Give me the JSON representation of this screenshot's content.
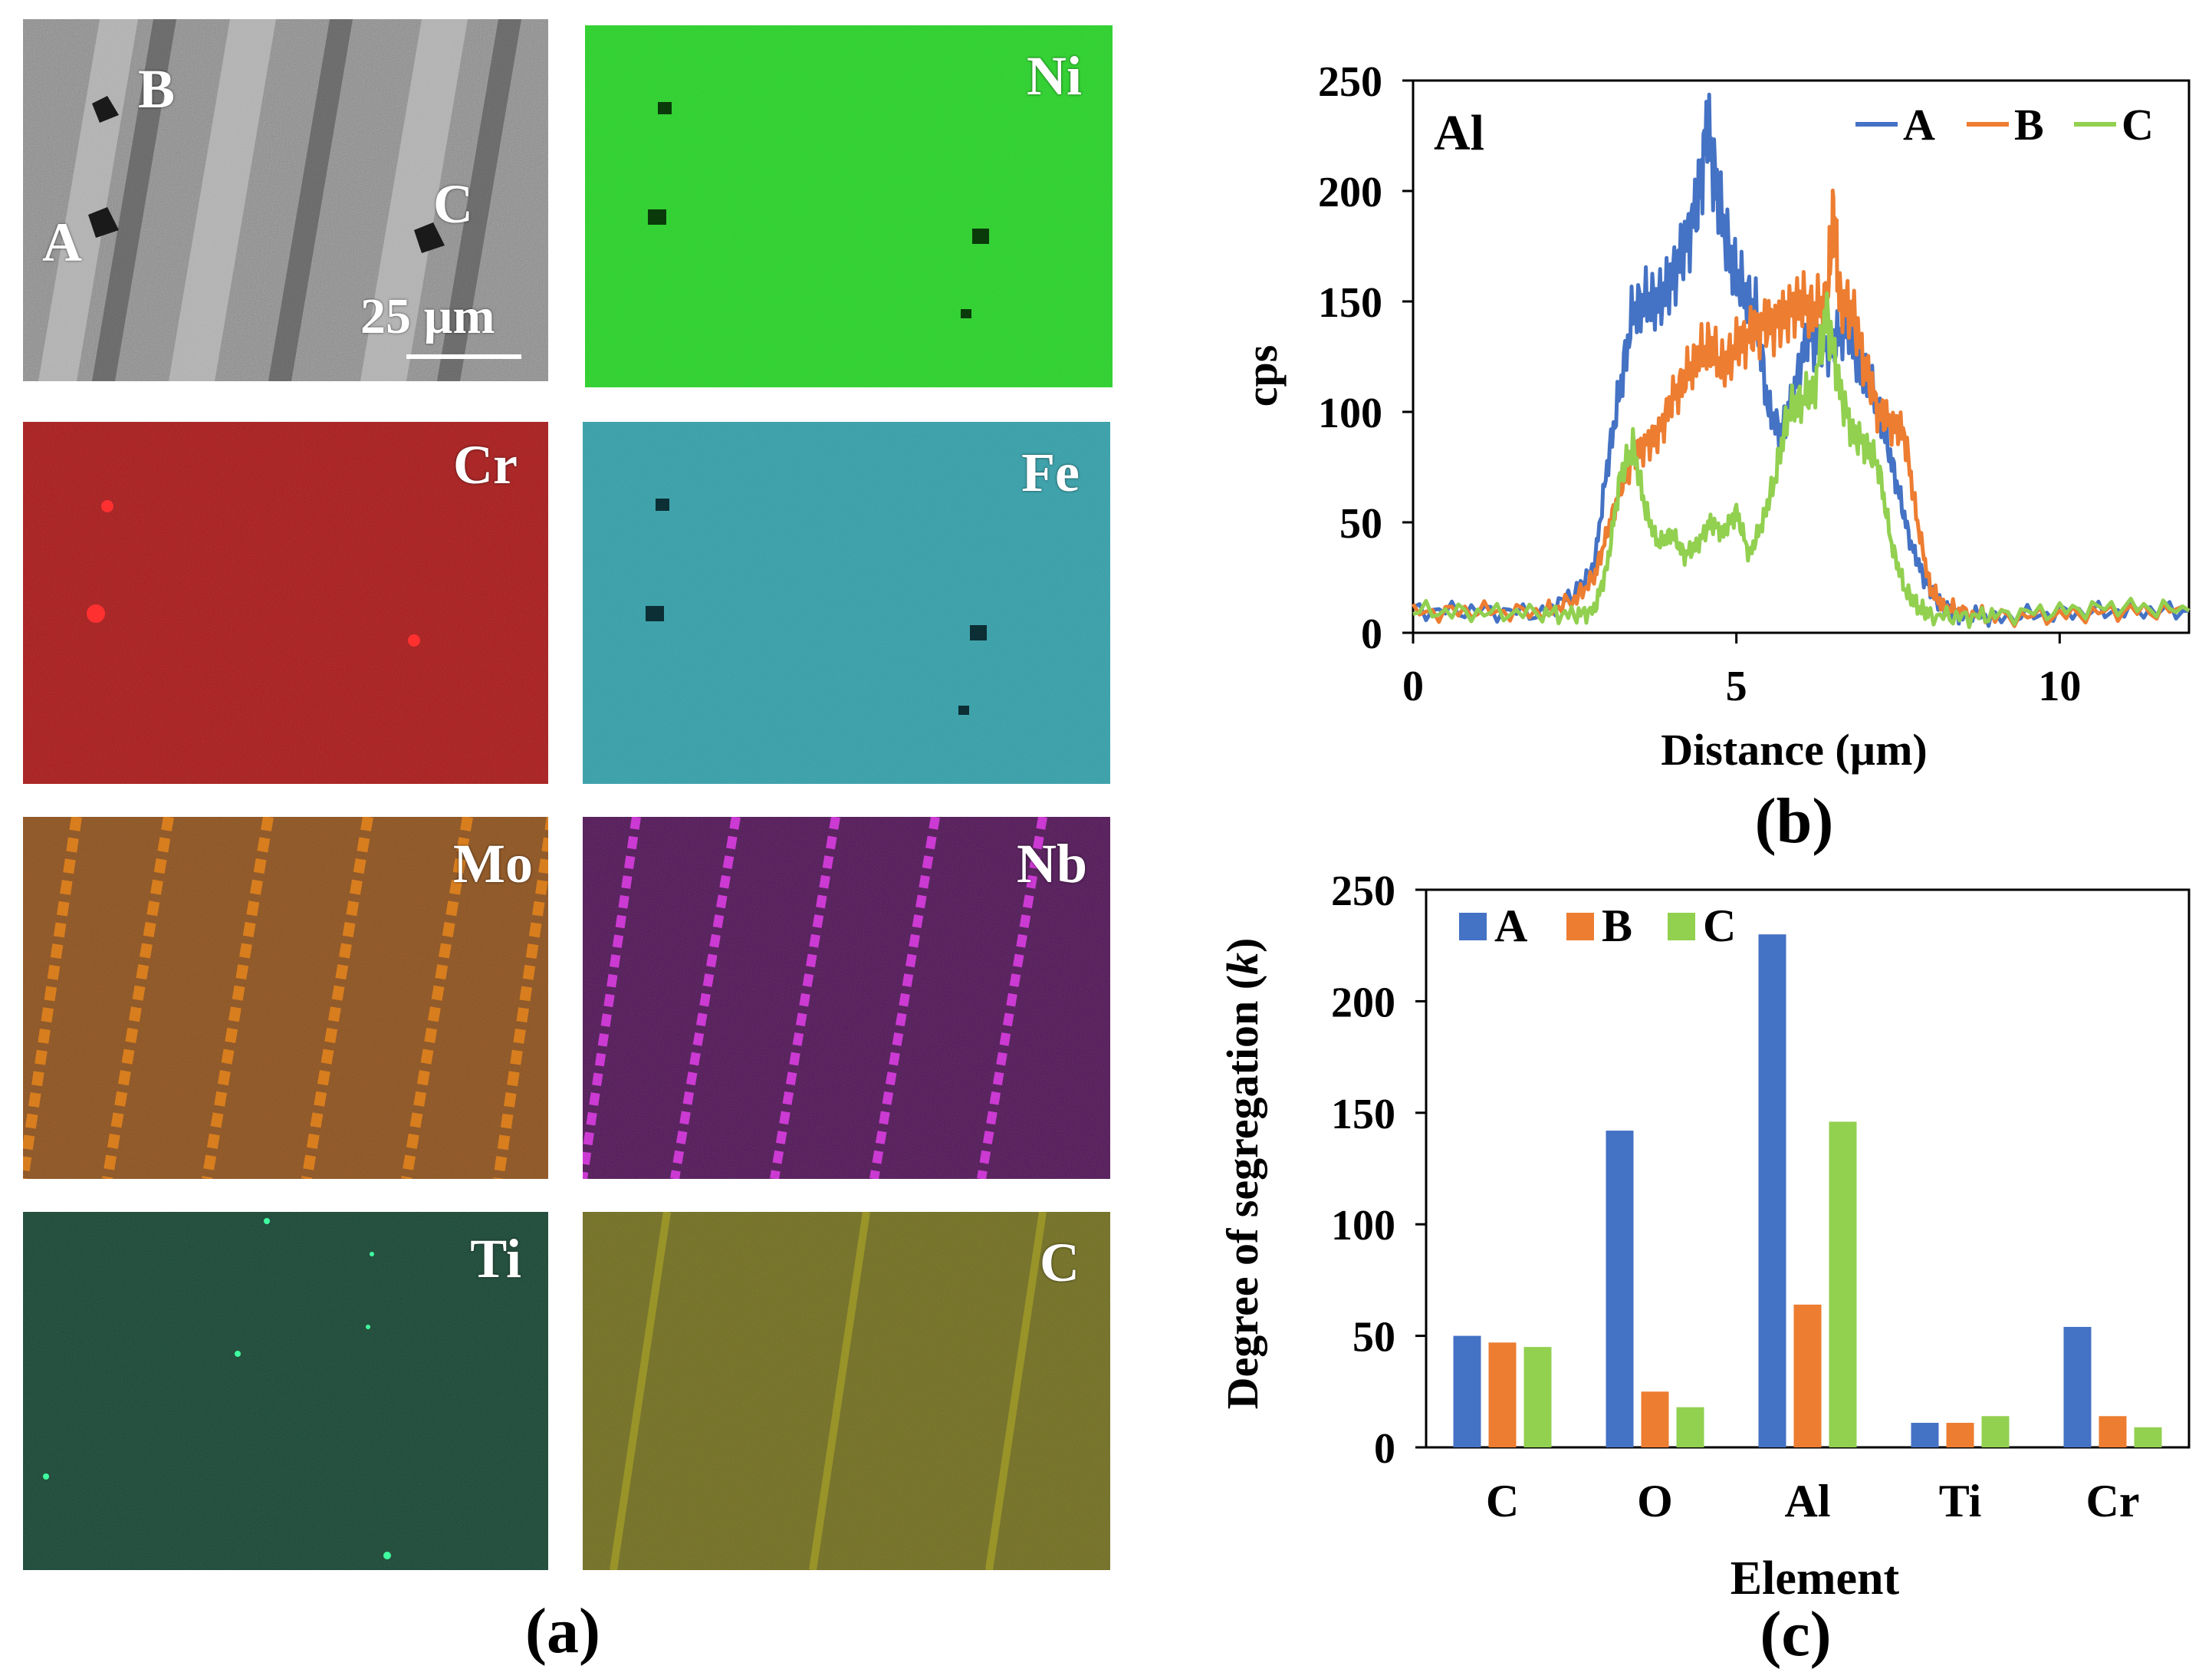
{
  "panel_a": {
    "caption": "(a)",
    "sem": {
      "points": [
        "A",
        "B",
        "C"
      ],
      "scale_bar": "25 µm"
    },
    "maps": [
      {
        "element": "Ni",
        "color": "#22dd22",
        "base": "#18c018"
      },
      {
        "element": "Cr",
        "color": "#c41414",
        "base": "#a00c0c"
      },
      {
        "element": "Fe",
        "color": "#2aa6b0",
        "base": "#1f8a95"
      },
      {
        "element": "Mo",
        "color": "#d87a14",
        "base": "#8a4a12"
      },
      {
        "element": "Nb",
        "color": "#e040e8",
        "base": "#4a0a50"
      },
      {
        "element": "Ti",
        "color": "#1e9a6a",
        "base": "#0b3e2a"
      },
      {
        "element": "C",
        "color": "#d6d020",
        "base": "#6e6a10"
      }
    ]
  },
  "chart_data": [
    {
      "id": "b",
      "type": "line",
      "caption": "(b)",
      "annotation": "Al",
      "xlabel": "Distance (µm)",
      "ylabel": "cps",
      "xlim": [
        0,
        12
      ],
      "ylim": [
        0,
        250
      ],
      "xticks": [
        0,
        5,
        10
      ],
      "yticks": [
        0,
        50,
        100,
        150,
        200,
        250
      ],
      "legend": "top-right",
      "series": [
        {
          "name": "A",
          "color": "#4472c4",
          "x": [
            0,
            1,
            2,
            2.5,
            2.8,
            3,
            3.2,
            3.4,
            3.6,
            3.8,
            4,
            4.2,
            4.4,
            4.55,
            4.7,
            4.9,
            5.1,
            5.3,
            5.5,
            5.7,
            5.9,
            6.1,
            6.3,
            6.5,
            6.7,
            6.9,
            7.1,
            7.3,
            7.5,
            7.7,
            7.9,
            8.1,
            8.3,
            8.5,
            9,
            10,
            11,
            12
          ],
          "y": [
            10,
            10,
            9,
            18,
            30,
            75,
            110,
            145,
            150,
            150,
            160,
            175,
            195,
            230,
            200,
            170,
            155,
            145,
            100,
            90,
            110,
            135,
            130,
            130,
            140,
            120,
            110,
            90,
            65,
            40,
            25,
            15,
            10,
            8,
            7,
            9,
            10,
            10
          ]
        },
        {
          "name": "B",
          "color": "#ed7d31",
          "x": [
            0,
            1,
            2,
            2.5,
            2.8,
            3,
            3.2,
            3.4,
            3.6,
            3.8,
            4,
            4.2,
            4.4,
            4.6,
            4.8,
            5,
            5.2,
            5.4,
            5.6,
            5.8,
            6,
            6.2,
            6.4,
            6.5,
            6.6,
            6.8,
            7,
            7.2,
            7.4,
            7.6,
            7.8,
            8,
            8.2,
            8.5,
            9,
            10,
            11,
            12
          ],
          "y": [
            9,
            10,
            9,
            15,
            25,
            45,
            65,
            80,
            85,
            90,
            105,
            115,
            125,
            130,
            120,
            130,
            135,
            140,
            140,
            145,
            150,
            145,
            150,
            190,
            150,
            145,
            120,
            100,
            95,
            90,
            50,
            20,
            12,
            9,
            7,
            8,
            10,
            10
          ]
        },
        {
          "name": "C",
          "color": "#92d050",
          "x": [
            0,
            1,
            2,
            2.5,
            2.8,
            3,
            3.2,
            3.4,
            3.6,
            3.8,
            4,
            4.2,
            4.4,
            4.6,
            4.8,
            5,
            5.2,
            5.4,
            5.6,
            5.8,
            6,
            6.2,
            6.4,
            6.6,
            6.8,
            7,
            7.2,
            7.4,
            7.6,
            7.8,
            8,
            8.5,
            9,
            10,
            11,
            12
          ],
          "y": [
            10,
            9,
            9,
            8,
            10,
            30,
            70,
            85,
            55,
            40,
            45,
            35,
            40,
            50,
            45,
            55,
            35,
            50,
            70,
            100,
            105,
            110,
            145,
            110,
            90,
            85,
            75,
            40,
            20,
            12,
            8,
            7,
            8,
            10,
            12,
            10
          ]
        }
      ]
    },
    {
      "id": "c",
      "type": "bar",
      "caption": "(c)",
      "xlabel": "Element",
      "ylabel": "Degree of segregation (",
      "ylabel_italic": "k",
      "ylabel_end": ")",
      "ylim": [
        0,
        250
      ],
      "yticks": [
        0,
        50,
        100,
        150,
        200,
        250
      ],
      "legend": "top-left",
      "categories": [
        "C",
        "O",
        "Al",
        "Ti",
        "Cr"
      ],
      "series": [
        {
          "name": "A",
          "color": "#4472c4",
          "values": [
            50,
            142,
            230,
            11,
            54
          ]
        },
        {
          "name": "B",
          "color": "#ed7d31",
          "values": [
            47,
            25,
            64,
            11,
            14
          ]
        },
        {
          "name": "C",
          "color": "#92d050",
          "values": [
            45,
            18,
            146,
            14,
            9
          ]
        }
      ]
    }
  ]
}
